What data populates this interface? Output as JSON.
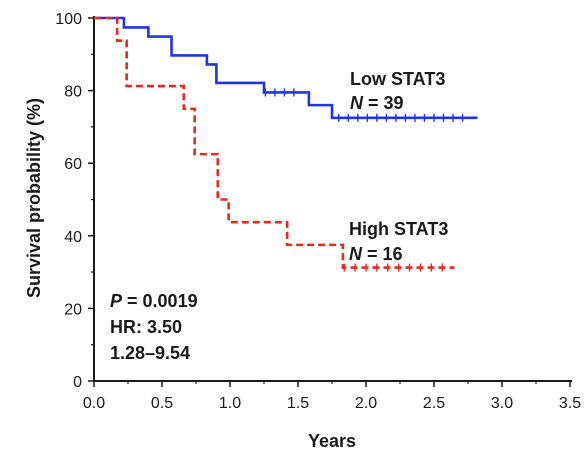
{
  "chart_data": {
    "type": "line",
    "subtype": "kaplan-meier",
    "xlabel": "Years",
    "ylabel": "Survival probability (%)",
    "xlim": [
      0,
      3.5
    ],
    "ylim": [
      0,
      100
    ],
    "xticks": [
      "0.0",
      "0.5",
      "1.0",
      "1.5",
      "2.0",
      "2.5",
      "3.0",
      "3.5"
    ],
    "yticks": [
      "0",
      "20",
      "40",
      "60",
      "80",
      "100"
    ],
    "grid": false,
    "series": [
      {
        "name": "Low STAT3",
        "n_label": "N = 39",
        "color": "#1f35e0",
        "line_style": "solid",
        "steps": [
          [
            0.0,
            100
          ],
          [
            0.22,
            97.4
          ],
          [
            0.4,
            94.9
          ],
          [
            0.57,
            89.7
          ],
          [
            0.83,
            87.2
          ],
          [
            0.9,
            82.1
          ],
          [
            1.25,
            79.5
          ],
          [
            1.58,
            76.0
          ],
          [
            1.75,
            72.5
          ],
          [
            2.82,
            72.5
          ]
        ],
        "censor_x": [
          1.26,
          1.33,
          1.4,
          1.47,
          1.8,
          1.87,
          1.94,
          2.01,
          2.08,
          2.15,
          2.22,
          2.29,
          2.36,
          2.43,
          2.5,
          2.57,
          2.64,
          2.71
        ]
      },
      {
        "name": "High STAT3",
        "n_label": "N = 16",
        "color": "#e8281c",
        "line_style": "dashed",
        "steps": [
          [
            0.0,
            100
          ],
          [
            0.17,
            93.75
          ],
          [
            0.24,
            81.25
          ],
          [
            0.66,
            75.0
          ],
          [
            0.74,
            62.5
          ],
          [
            0.91,
            50.0
          ],
          [
            0.99,
            43.75
          ],
          [
            1.42,
            37.5
          ],
          [
            1.83,
            31.25
          ],
          [
            2.65,
            31.25
          ]
        ],
        "censor_x": [
          1.84,
          1.92,
          2.0,
          2.08,
          2.16,
          2.24,
          2.32,
          2.4,
          2.48,
          2.56
        ]
      }
    ],
    "annotations": {
      "low_label": "Low STAT3",
      "low_n": "N = 39",
      "high_label": "High STAT3",
      "high_n": "N = 16",
      "p_value": "P = 0.0019",
      "hr": "HR: 3.50",
      "ci": "1.28–9.54"
    }
  }
}
